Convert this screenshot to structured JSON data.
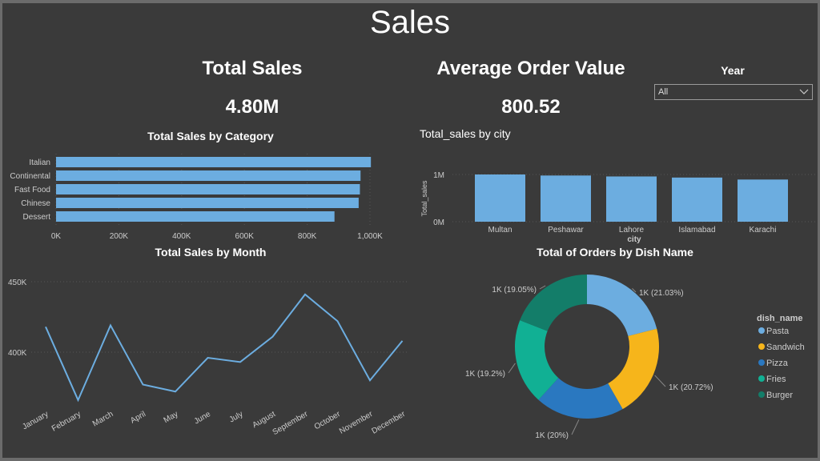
{
  "page": {
    "title": "Sales"
  },
  "kpis": [
    {
      "label": "Total Sales",
      "value": "4.80M"
    },
    {
      "label": "Average Order Value",
      "value": "800.52"
    }
  ],
  "filter": {
    "label": "Year",
    "selected": "All",
    "icon": "chevron-down-icon"
  },
  "colors": {
    "background": "#3a3a3a",
    "bar": "#6cade0",
    "text": "#ffffff",
    "axis_text": "#cccccc"
  },
  "chart_data": [
    {
      "id": "category",
      "type": "bar",
      "orientation": "horizontal",
      "title": "Total Sales by Category",
      "categories": [
        "Italian",
        "Continental",
        "Fast Food",
        "Chinese",
        "Dessert"
      ],
      "values": [
        1003000,
        970000,
        968000,
        964000,
        887000
      ],
      "xlim": [
        0,
        1000000
      ],
      "xticks": [
        "0K",
        "200K",
        "400K",
        "600K",
        "800K",
        "1,000K"
      ],
      "grid": true
    },
    {
      "id": "city",
      "type": "bar",
      "title": "Total_sales by city",
      "xlabel": "city",
      "ylabel": "Total_sales",
      "categories": [
        "Multan",
        "Peshawar",
        "Lahore",
        "Islamabad",
        "Karachi"
      ],
      "values": [
        1000000,
        978000,
        958000,
        935000,
        893000
      ],
      "ylim": [
        0,
        1000000
      ],
      "yticks": [
        "0M",
        "1M"
      ],
      "grid": true
    },
    {
      "id": "month",
      "type": "line",
      "title": "Total Sales by Month",
      "categories": [
        "January",
        "February",
        "March",
        "April",
        "May",
        "June",
        "July",
        "August",
        "September",
        "October",
        "November",
        "December"
      ],
      "values": [
        418000,
        366000,
        419000,
        377000,
        372000,
        396000,
        393000,
        411000,
        441000,
        422000,
        380000,
        408000
      ],
      "ylim": [
        340000,
        455000
      ],
      "yticks": [
        {
          "value": 450000,
          "label": "450K"
        },
        {
          "value": 400000,
          "label": "400K"
        }
      ],
      "grid": true
    },
    {
      "id": "dish",
      "type": "pie",
      "donut": true,
      "title": "Total of Orders by Dish Name",
      "legend_title": "dish_name",
      "legend_position": "right",
      "slices": [
        {
          "name": "Pasta",
          "percent": 21.03,
          "label": "1K (21.03%)",
          "color": "#6cade0"
        },
        {
          "name": "Sandwich",
          "percent": 20.72,
          "label": "1K (20.72%)",
          "color": "#f6b51b"
        },
        {
          "name": "Pizza",
          "percent": 20.0,
          "label": "1K (20%)",
          "color": "#2a78c0"
        },
        {
          "name": "Fries",
          "percent": 19.2,
          "label": "1K (19.2%)",
          "color": "#11b094"
        },
        {
          "name": "Burger",
          "percent": 19.05,
          "label": "1K (19.05%)",
          "color": "#137d69"
        }
      ]
    }
  ]
}
